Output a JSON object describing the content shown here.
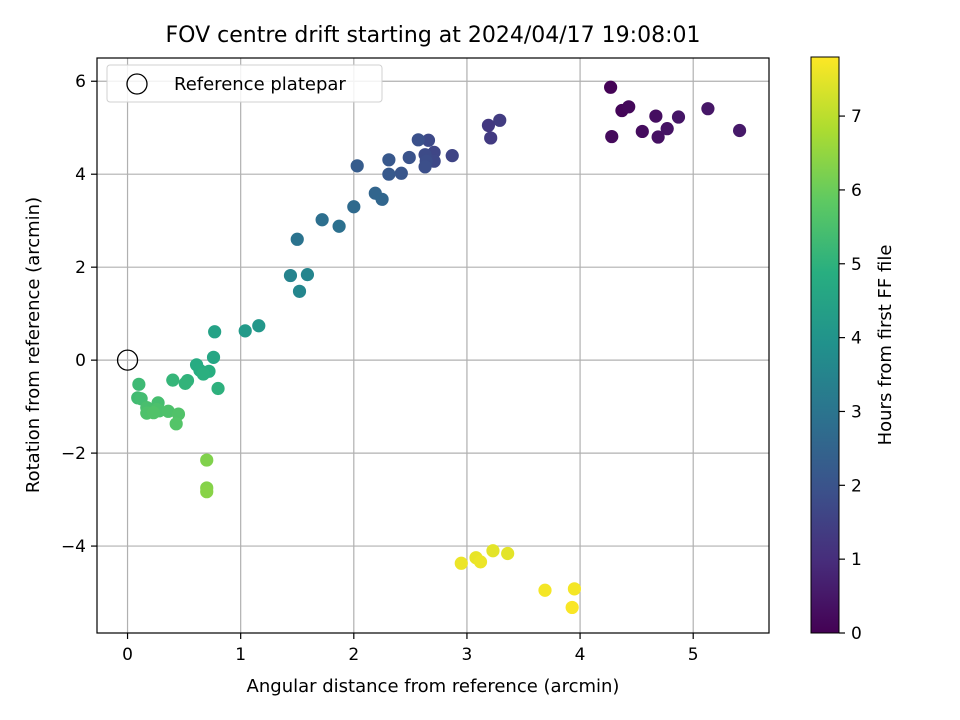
{
  "chart_data": {
    "type": "scatter",
    "title": "FOV centre drift starting at 2024/04/17 19:08:01",
    "xlabel": "Angular distance from reference (arcmin)",
    "ylabel": "Rotation from reference (arcmin)",
    "xlim": [
      -0.27,
      5.67
    ],
    "ylim": [
      -5.87,
      6.5
    ],
    "xticks": [
      0,
      1,
      2,
      3,
      4,
      5
    ],
    "xtick_labels": [
      "0",
      "1",
      "2",
      "3",
      "4",
      "5"
    ],
    "yticks": [
      -4,
      -2,
      0,
      2,
      4,
      6
    ],
    "ytick_labels": [
      "−4",
      "−2",
      "0",
      "2",
      "4",
      "6"
    ],
    "grid": true,
    "legend": {
      "placement": "upper-left",
      "entries": [
        "Reference platepar"
      ]
    },
    "colorbar": {
      "label": "Hours from first FF file",
      "range": [
        0,
        7.8
      ],
      "ticks": [
        0,
        1,
        2,
        3,
        4,
        5,
        6,
        7
      ],
      "tick_labels": [
        "0",
        "1",
        "2",
        "3",
        "4",
        "5",
        "6",
        "7"
      ],
      "colormap": "viridis"
    },
    "reference_point": {
      "x": 0,
      "y": 0
    },
    "points": [
      {
        "x": 4.27,
        "y": 5.87,
        "t": 0.05
      },
      {
        "x": 4.37,
        "y": 5.37,
        "t": 0.1
      },
      {
        "x": 4.43,
        "y": 5.45,
        "t": 0.15
      },
      {
        "x": 4.28,
        "y": 4.81,
        "t": 0.2
      },
      {
        "x": 4.55,
        "y": 4.92,
        "t": 0.25
      },
      {
        "x": 4.67,
        "y": 5.25,
        "t": 0.3
      },
      {
        "x": 4.69,
        "y": 4.8,
        "t": 0.35
      },
      {
        "x": 4.77,
        "y": 4.98,
        "t": 0.4
      },
      {
        "x": 4.87,
        "y": 5.23,
        "t": 0.45
      },
      {
        "x": 5.13,
        "y": 5.41,
        "t": 0.5
      },
      {
        "x": 5.41,
        "y": 4.94,
        "t": 0.55
      },
      {
        "x": 3.19,
        "y": 5.05,
        "t": 1.3
      },
      {
        "x": 3.21,
        "y": 4.78,
        "t": 1.35
      },
      {
        "x": 3.29,
        "y": 5.16,
        "t": 1.4
      },
      {
        "x": 2.87,
        "y": 4.4,
        "t": 1.6
      },
      {
        "x": 2.71,
        "y": 4.47,
        "t": 1.65
      },
      {
        "x": 2.71,
        "y": 4.28,
        "t": 1.7
      },
      {
        "x": 2.66,
        "y": 4.73,
        "t": 1.75
      },
      {
        "x": 2.63,
        "y": 4.42,
        "t": 1.8
      },
      {
        "x": 2.64,
        "y": 4.28,
        "t": 1.85
      },
      {
        "x": 2.63,
        "y": 4.16,
        "t": 1.9
      },
      {
        "x": 2.57,
        "y": 4.74,
        "t": 1.95
      },
      {
        "x": 2.49,
        "y": 4.36,
        "t": 2.0
      },
      {
        "x": 2.42,
        "y": 4.02,
        "t": 2.1
      },
      {
        "x": 2.31,
        "y": 4.31,
        "t": 2.15
      },
      {
        "x": 2.31,
        "y": 4.0,
        "t": 2.2
      },
      {
        "x": 2.03,
        "y": 4.18,
        "t": 2.3
      },
      {
        "x": 2.19,
        "y": 3.59,
        "t": 2.55
      },
      {
        "x": 2.25,
        "y": 3.46,
        "t": 2.6
      },
      {
        "x": 2.0,
        "y": 3.3,
        "t": 2.7
      },
      {
        "x": 1.72,
        "y": 3.02,
        "t": 2.85
      },
      {
        "x": 1.87,
        "y": 2.88,
        "t": 2.9
      },
      {
        "x": 1.5,
        "y": 2.6,
        "t": 3.0
      },
      {
        "x": 1.44,
        "y": 1.82,
        "t": 3.5
      },
      {
        "x": 1.59,
        "y": 1.84,
        "t": 3.55
      },
      {
        "x": 1.52,
        "y": 1.48,
        "t": 3.6
      },
      {
        "x": 1.16,
        "y": 0.74,
        "t": 4.15
      },
      {
        "x": 1.04,
        "y": 0.63,
        "t": 4.25
      },
      {
        "x": 0.77,
        "y": 0.61,
        "t": 4.5
      },
      {
        "x": 0.76,
        "y": 0.06,
        "t": 4.65
      },
      {
        "x": 0.61,
        "y": -0.1,
        "t": 4.8
      },
      {
        "x": 0.64,
        "y": -0.22,
        "t": 4.85
      },
      {
        "x": 0.72,
        "y": -0.24,
        "t": 4.9
      },
      {
        "x": 0.67,
        "y": -0.3,
        "t": 4.95
      },
      {
        "x": 0.8,
        "y": -0.61,
        "t": 5.0
      },
      {
        "x": 0.53,
        "y": -0.44,
        "t": 5.05
      },
      {
        "x": 0.51,
        "y": -0.5,
        "t": 5.1
      },
      {
        "x": 0.4,
        "y": -0.43,
        "t": 5.15
      },
      {
        "x": 0.1,
        "y": -0.52,
        "t": 5.3
      },
      {
        "x": 0.09,
        "y": -0.81,
        "t": 5.35
      },
      {
        "x": 0.12,
        "y": -0.83,
        "t": 5.4
      },
      {
        "x": 0.27,
        "y": -0.92,
        "t": 5.45
      },
      {
        "x": 0.17,
        "y": -1.02,
        "t": 5.5
      },
      {
        "x": 0.2,
        "y": -1.1,
        "t": 5.5
      },
      {
        "x": 0.26,
        "y": -1.06,
        "t": 5.55
      },
      {
        "x": 0.28,
        "y": -1.09,
        "t": 5.55
      },
      {
        "x": 0.36,
        "y": -1.1,
        "t": 5.6
      },
      {
        "x": 0.17,
        "y": -1.14,
        "t": 5.6
      },
      {
        "x": 0.23,
        "y": -1.13,
        "t": 5.65
      },
      {
        "x": 0.45,
        "y": -1.16,
        "t": 5.65
      },
      {
        "x": 0.43,
        "y": -1.37,
        "t": 5.7
      },
      {
        "x": 0.7,
        "y": -2.15,
        "t": 6.3
      },
      {
        "x": 0.7,
        "y": -2.75,
        "t": 6.35
      },
      {
        "x": 0.7,
        "y": -2.83,
        "t": 6.4
      },
      {
        "x": 3.23,
        "y": -4.1,
        "t": 7.5
      },
      {
        "x": 3.36,
        "y": -4.16,
        "t": 7.5
      },
      {
        "x": 3.08,
        "y": -4.25,
        "t": 7.55
      },
      {
        "x": 2.95,
        "y": -4.37,
        "t": 7.6
      },
      {
        "x": 3.12,
        "y": -4.34,
        "t": 7.6
      },
      {
        "x": 3.69,
        "y": -4.95,
        "t": 7.7
      },
      {
        "x": 3.95,
        "y": -4.92,
        "t": 7.7
      },
      {
        "x": 3.93,
        "y": -5.32,
        "t": 7.75
      }
    ]
  }
}
